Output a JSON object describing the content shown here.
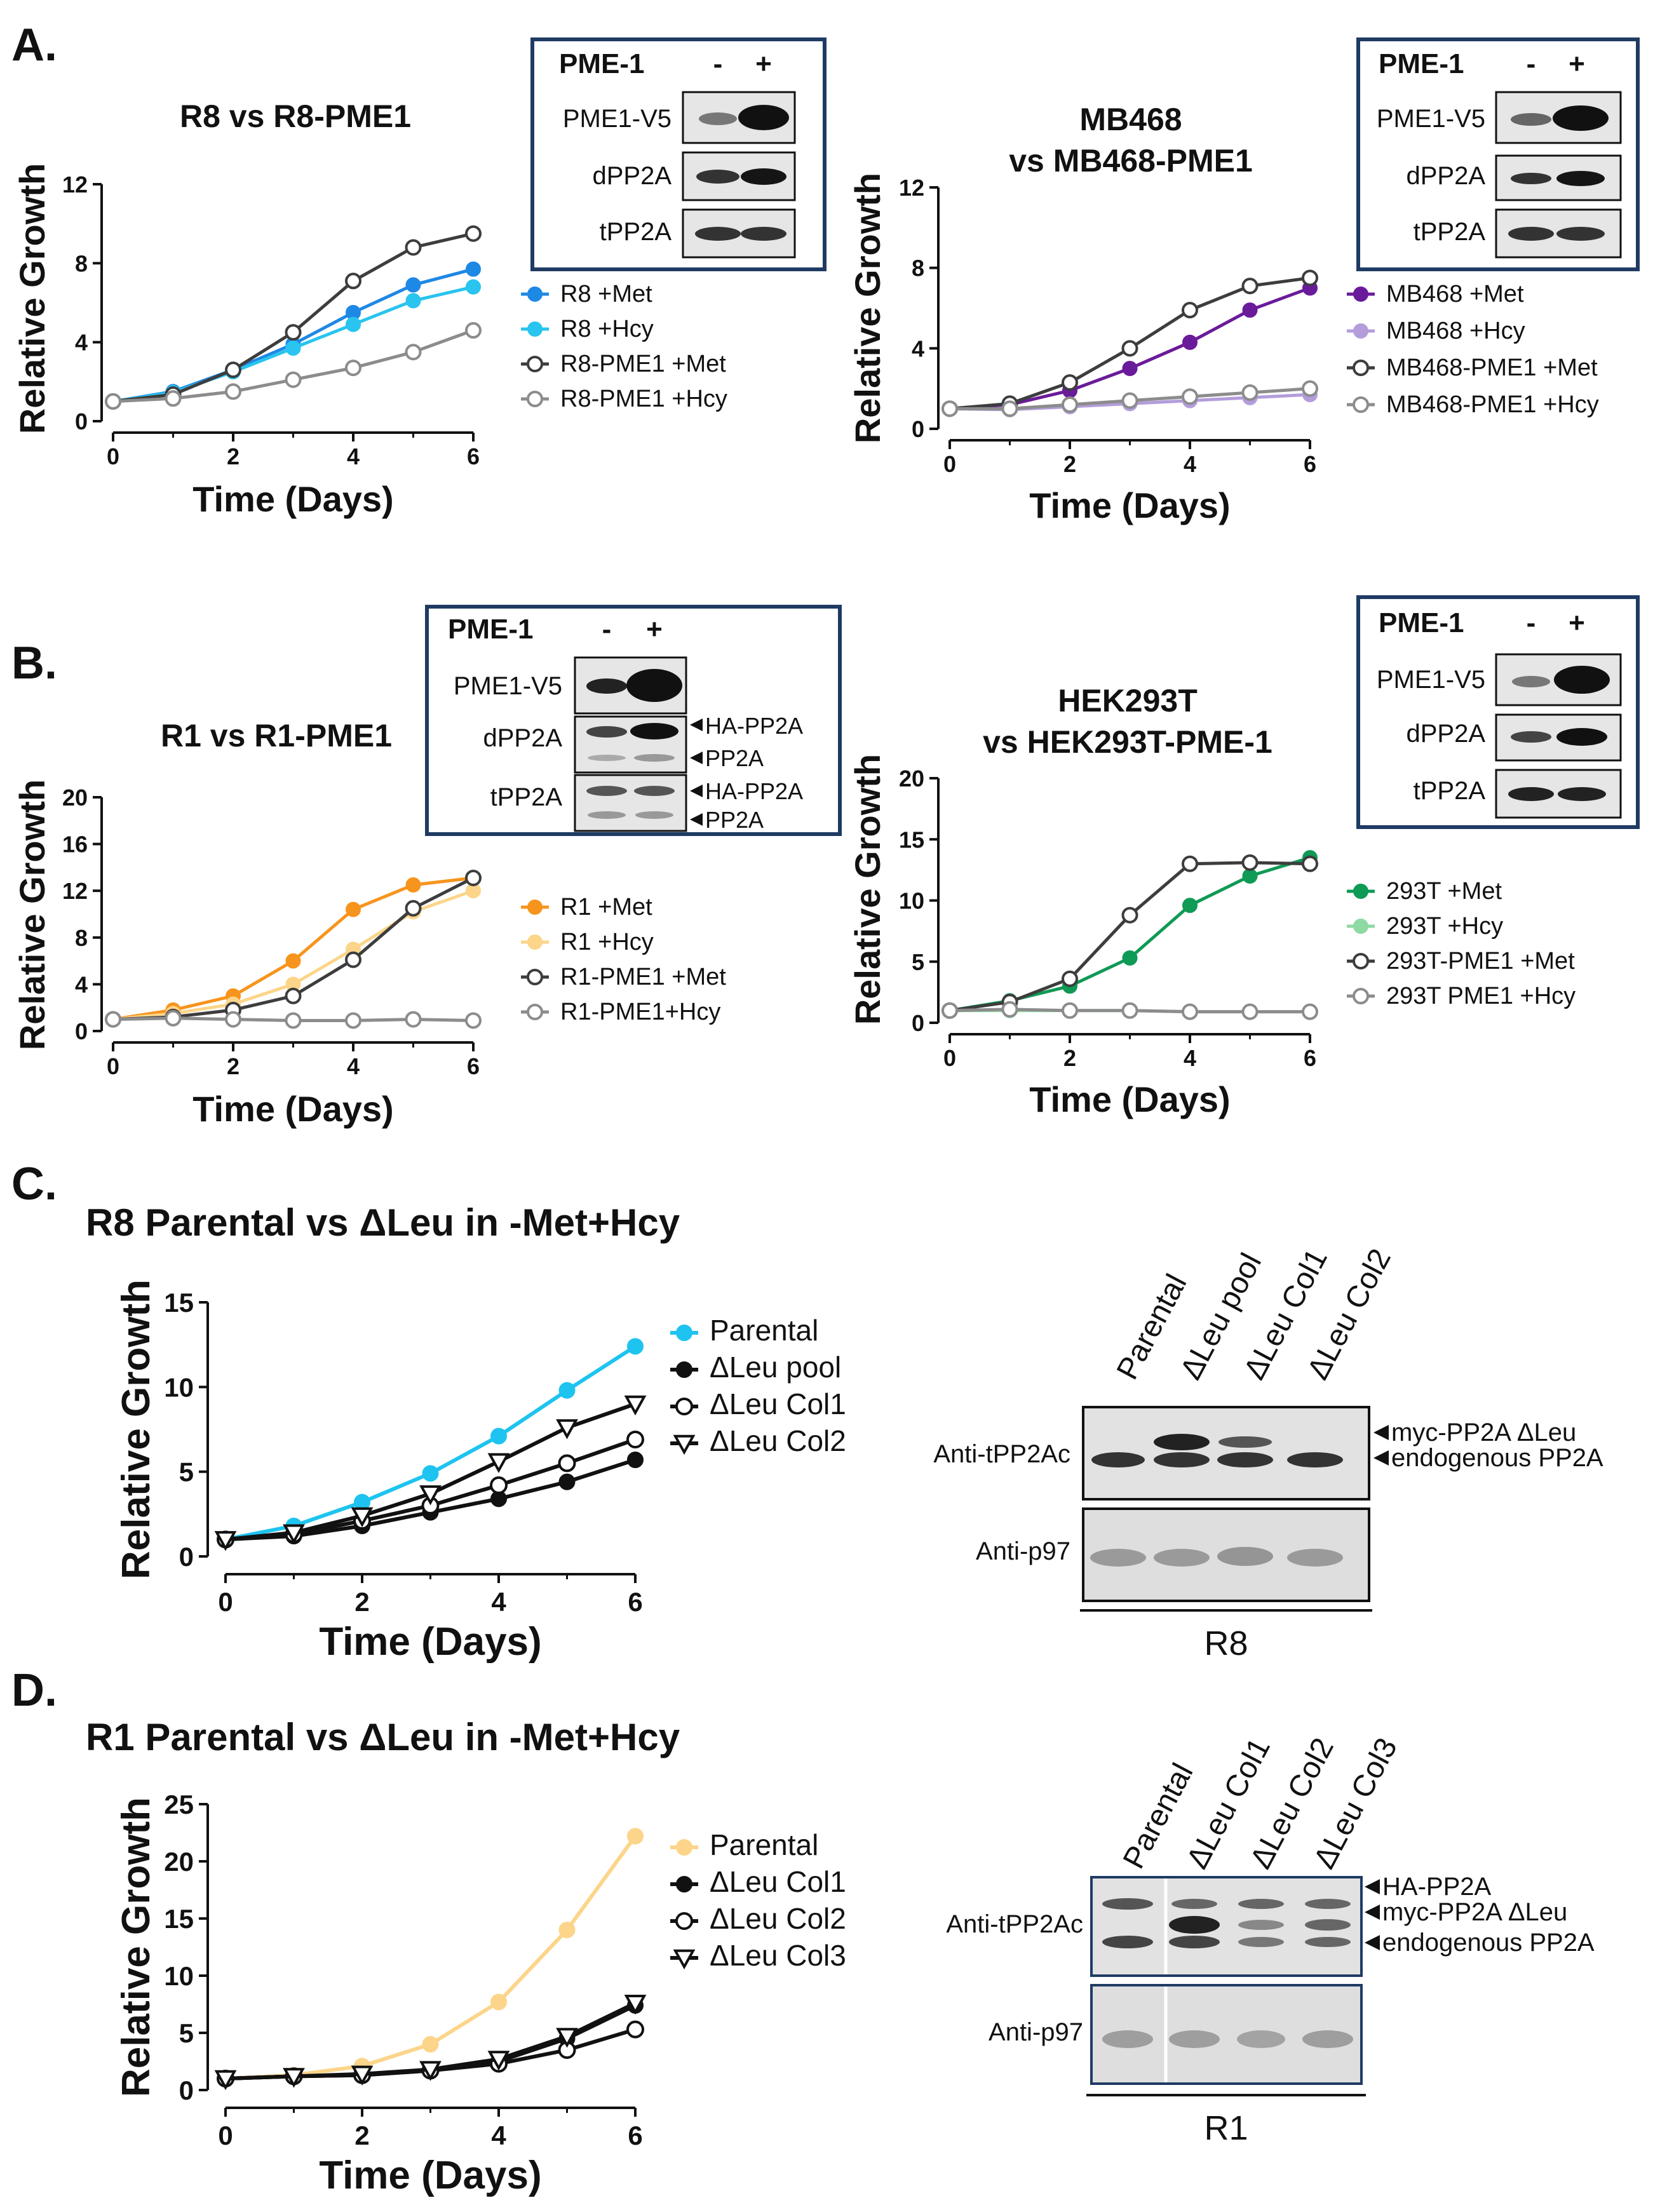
{
  "panels": [
    {
      "label": "A."
    },
    {
      "label": "B."
    },
    {
      "label": "C."
    },
    {
      "label": "D."
    }
  ],
  "chart_data": [
    {
      "type": "line",
      "id": "A1",
      "title": "R8 vs R8-PME1",
      "xlabel": "Time (Days)",
      "ylabel": "Relative Growth",
      "xlim": [
        0,
        6
      ],
      "ylim": [
        0,
        12
      ],
      "xticks": [
        "0",
        "2",
        "4",
        "6"
      ],
      "yticks": [
        "0",
        "4",
        "8",
        "12"
      ],
      "x": [
        0,
        1,
        2,
        3,
        4,
        5,
        6
      ],
      "series": [
        {
          "name": "R8 +Met",
          "color": "#1e88e5",
          "marker": "filled",
          "values": [
            1,
            1.5,
            2.6,
            3.9,
            5.5,
            6.9,
            7.7
          ]
        },
        {
          "name": "R8 +Hcy",
          "color": "#29c4ef",
          "marker": "filled",
          "values": [
            1,
            1.45,
            2.5,
            3.7,
            4.9,
            6.1,
            6.8
          ]
        },
        {
          "name": "R8-PME1 +Met",
          "color": "#3d3d3d",
          "marker": "open",
          "values": [
            1,
            1.35,
            2.6,
            4.5,
            7.1,
            8.8,
            9.5
          ]
        },
        {
          "name": "R8-PME1 +Hcy",
          "color": "#8c8c8c",
          "marker": "open",
          "values": [
            1,
            1.15,
            1.5,
            2.1,
            2.7,
            3.5,
            4.6
          ]
        }
      ]
    },
    {
      "type": "line",
      "id": "A2",
      "title": "MB468",
      "title2": "vs MB468-PME1",
      "xlabel": "Time (Days)",
      "ylabel": "Relative Growth",
      "xlim": [
        0,
        6
      ],
      "ylim": [
        0,
        12
      ],
      "xticks": [
        "0",
        "2",
        "4",
        "6"
      ],
      "yticks": [
        "0",
        "4",
        "8",
        "12"
      ],
      "x": [
        0,
        1,
        2,
        3,
        4,
        5,
        6
      ],
      "series": [
        {
          "name": "MB468 +Met",
          "color": "#6a1b9a",
          "marker": "filled",
          "values": [
            1,
            1.2,
            1.9,
            3.0,
            4.3,
            5.9,
            7.0
          ]
        },
        {
          "name": "MB468 +Hcy",
          "color": "#b39ddb",
          "marker": "filled",
          "values": [
            1,
            0.95,
            1.1,
            1.25,
            1.4,
            1.55,
            1.7
          ]
        },
        {
          "name": "MB468-PME1 +Met",
          "color": "#3d3d3d",
          "marker": "open",
          "values": [
            1,
            1.25,
            2.3,
            4.0,
            5.9,
            7.1,
            7.5
          ]
        },
        {
          "name": "MB468-PME1 +Hcy",
          "color": "#8c8c8c",
          "marker": "open",
          "values": [
            1,
            1.0,
            1.2,
            1.4,
            1.6,
            1.8,
            2.0
          ]
        }
      ]
    },
    {
      "type": "line",
      "id": "B1",
      "title": "R1 vs R1-PME1",
      "xlabel": "Time (Days)",
      "ylabel": "Relative Growth",
      "xlim": [
        0,
        6
      ],
      "ylim": [
        0,
        20
      ],
      "xticks": [
        "0",
        "2",
        "4",
        "6"
      ],
      "yticks": [
        "0",
        "4",
        "8",
        "12",
        "16",
        "20"
      ],
      "x": [
        0,
        1,
        2,
        3,
        4,
        5,
        6
      ],
      "series": [
        {
          "name": "R1 +Met",
          "color": "#f7941d",
          "marker": "filled",
          "values": [
            1,
            1.8,
            3.0,
            6.0,
            10.4,
            12.5,
            13.1
          ]
        },
        {
          "name": "R1 +Hcy",
          "color": "#fcd58a",
          "marker": "filled",
          "values": [
            1,
            1.5,
            2.3,
            4.0,
            7.0,
            10.2,
            12.0
          ]
        },
        {
          "name": "R1-PME1 +Met",
          "color": "#3d3d3d",
          "marker": "open",
          "values": [
            1,
            1.2,
            1.8,
            3.0,
            6.1,
            10.5,
            13.1
          ]
        },
        {
          "name": "R1-PME1+Hcy",
          "color": "#8c8c8c",
          "marker": "open",
          "values": [
            1,
            1.1,
            1.0,
            0.9,
            0.9,
            1.0,
            0.9
          ]
        }
      ]
    },
    {
      "type": "line",
      "id": "B2",
      "title": "HEK293T",
      "title2": "vs HEK293T-PME-1",
      "xlabel": "Time (Days)",
      "ylabel": "Relative Growth",
      "xlim": [
        0,
        6
      ],
      "ylim": [
        0,
        20
      ],
      "xticks": [
        "0",
        "2",
        "4",
        "6"
      ],
      "yticks": [
        "0",
        "5",
        "10",
        "15",
        "20"
      ],
      "x": [
        0,
        1,
        2,
        3,
        4,
        5,
        6
      ],
      "series": [
        {
          "name": "293T +Met",
          "color": "#0f9a55",
          "marker": "filled",
          "values": [
            1,
            1.8,
            3.0,
            5.3,
            9.6,
            12.0,
            13.5
          ]
        },
        {
          "name": "293T +Hcy",
          "color": "#8fd9a3",
          "marker": "filled",
          "values": [
            1,
            1.0,
            1.0,
            1.0,
            0.9,
            0.9,
            0.9
          ]
        },
        {
          "name": "293T-PME1 +Met",
          "color": "#3d3d3d",
          "marker": "open",
          "values": [
            1,
            1.7,
            3.6,
            8.8,
            13.0,
            13.1,
            13.0
          ]
        },
        {
          "name": "293T PME1 +Hcy",
          "color": "#8c8c8c",
          "marker": "open",
          "values": [
            1,
            1.1,
            1.0,
            1.0,
            0.9,
            0.9,
            0.9
          ]
        }
      ]
    },
    {
      "type": "line",
      "id": "C",
      "title": "R8 Parental vs ΔLeu in -Met+Hcy",
      "xlabel": "Time (Days)",
      "ylabel": "Relative Growth",
      "xlim": [
        0,
        6
      ],
      "ylim": [
        0,
        15
      ],
      "xticks": [
        "0",
        "2",
        "4",
        "6"
      ],
      "yticks": [
        "0",
        "5",
        "10",
        "15"
      ],
      "x": [
        0,
        1,
        2,
        3,
        4,
        5,
        6
      ],
      "series": [
        {
          "name": "Parental",
          "color": "#1ec4ef",
          "marker": "filled",
          "values": [
            1,
            1.8,
            3.2,
            4.9,
            7.1,
            9.8,
            12.4
          ]
        },
        {
          "name": "ΔLeu pool",
          "color": "#111111",
          "marker": "filled",
          "values": [
            1,
            1.2,
            1.8,
            2.6,
            3.4,
            4.4,
            5.7
          ]
        },
        {
          "name": "ΔLeu Col1",
          "color": "#111111",
          "marker": "open",
          "values": [
            1,
            1.3,
            2.1,
            3.0,
            4.2,
            5.5,
            6.9
          ]
        },
        {
          "name": "ΔLeu Col2",
          "color": "#111111",
          "marker": "triangle",
          "values": [
            1,
            1.4,
            2.4,
            3.7,
            5.6,
            7.6,
            9.0
          ]
        }
      ]
    },
    {
      "type": "line",
      "id": "D",
      "title": "R1 Parental vs ΔLeu in -Met+Hcy",
      "xlabel": "Time (Days)",
      "ylabel": "Relative Growth",
      "xlim": [
        0,
        6
      ],
      "ylim": [
        0,
        25
      ],
      "xticks": [
        "0",
        "2",
        "4",
        "6"
      ],
      "yticks": [
        "0",
        "5",
        "10",
        "15",
        "20",
        "25"
      ],
      "x": [
        0,
        1,
        2,
        3,
        4,
        5,
        6
      ],
      "series": [
        {
          "name": "Parental",
          "color": "#fcd58a",
          "marker": "filled",
          "values": [
            1,
            1.3,
            2.1,
            4.0,
            7.7,
            14.0,
            22.2
          ]
        },
        {
          "name": "ΔLeu Col1",
          "color": "#111111",
          "marker": "filled",
          "values": [
            1,
            1.2,
            1.3,
            1.7,
            2.5,
            4.5,
            7.4
          ]
        },
        {
          "name": "ΔLeu Col2",
          "color": "#111111",
          "marker": "open",
          "values": [
            1,
            1.2,
            1.3,
            1.7,
            2.3,
            3.5,
            5.3
          ]
        },
        {
          "name": "ΔLeu Col3",
          "color": "#111111",
          "marker": "triangle",
          "values": [
            1,
            1.2,
            1.4,
            1.8,
            2.7,
            4.7,
            7.6
          ]
        }
      ]
    }
  ],
  "blots": {
    "A1": {
      "header": "PME-1",
      "minus": "-",
      "plus": "+",
      "rows": [
        "PME1-V5",
        "dPP2A",
        "tPP2A"
      ]
    },
    "A2": {
      "header": "PME-1",
      "minus": "-",
      "plus": "+",
      "rows": [
        "PME1-V5",
        "dPP2A",
        "tPP2A"
      ]
    },
    "B1": {
      "header": "PME-1",
      "minus": "-",
      "plus": "+",
      "rows": [
        "PME1-V5",
        "dPP2A",
        "tPP2A"
      ],
      "arrows": [
        "HA-PP2A",
        "PP2A",
        "HA-PP2A",
        "PP2A"
      ]
    },
    "B2": {
      "header": "PME-1",
      "minus": "-",
      "plus": "+",
      "rows": [
        "PME1-V5",
        "dPP2A",
        "tPP2A"
      ]
    },
    "C": {
      "lanes": [
        "Parental",
        "ΔLeu pool",
        "ΔLeu Col1",
        "ΔLeu Col2"
      ],
      "row1": "Anti-tPP2Ac",
      "row2": "Anti-p97",
      "arrows": [
        "myc-PP2A ΔLeu",
        "endogenous PP2A"
      ],
      "cell": "R8"
    },
    "D": {
      "lanes": [
        "Parental",
        "ΔLeu Col1",
        "ΔLeu Col2",
        "ΔLeu Col3"
      ],
      "row1": "Anti-tPP2Ac",
      "row2": "Anti-p97",
      "arrows": [
        "HA-PP2A",
        "myc-PP2A ΔLeu",
        "endogenous PP2A"
      ],
      "cell": "R1"
    }
  }
}
